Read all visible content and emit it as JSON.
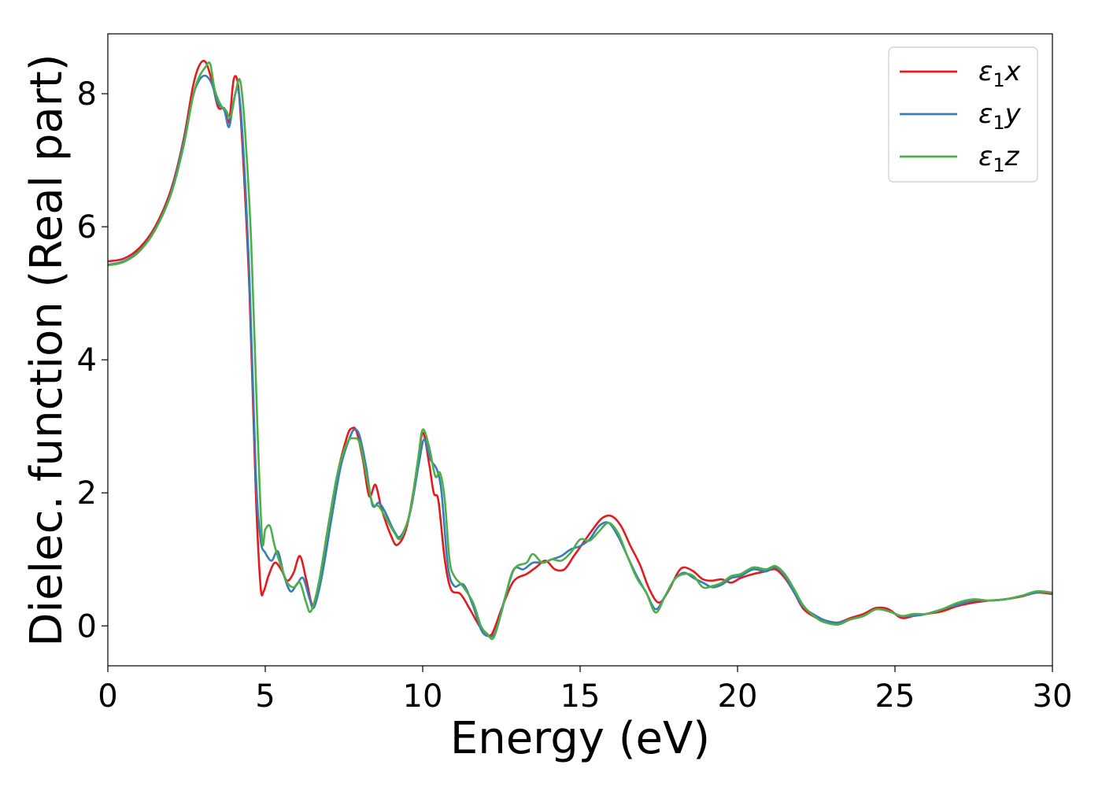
{
  "chart_data": {
    "type": "line",
    "title": "",
    "xlabel": "Energy (eV)",
    "ylabel": "Dielec. function (Real part)",
    "xlim": [
      0,
      30
    ],
    "ylim": [
      -0.6,
      8.9
    ],
    "xticks": [
      0,
      5,
      10,
      15,
      20,
      25,
      30
    ],
    "xtick_labels": [
      "0",
      "5",
      "10",
      "15",
      "20",
      "25",
      "30"
    ],
    "yticks": [
      0,
      2,
      4,
      6,
      8
    ],
    "ytick_labels": [
      "0",
      "2",
      "4",
      "6",
      "8"
    ],
    "grid": false,
    "legend_position": "top-right",
    "series": [
      {
        "name": "ε1x",
        "legend": {
          "base": "ε",
          "sub": "1",
          "suffix": "x"
        },
        "color": "#e41a1c",
        "points": [
          [
            0,
            5.48
          ],
          [
            0.5,
            5.52
          ],
          [
            1.0,
            5.68
          ],
          [
            1.5,
            6.0
          ],
          [
            2.0,
            6.55
          ],
          [
            2.4,
            7.3
          ],
          [
            2.7,
            8.1
          ],
          [
            2.9,
            8.42
          ],
          [
            3.1,
            8.48
          ],
          [
            3.3,
            8.2
          ],
          [
            3.5,
            7.8
          ],
          [
            3.7,
            7.78
          ],
          [
            3.85,
            7.58
          ],
          [
            4.0,
            8.22
          ],
          [
            4.15,
            8.08
          ],
          [
            4.3,
            7.0
          ],
          [
            4.5,
            5.0
          ],
          [
            4.7,
            2.0
          ],
          [
            4.85,
            0.6
          ],
          [
            4.95,
            0.52
          ],
          [
            5.1,
            0.75
          ],
          [
            5.3,
            0.95
          ],
          [
            5.5,
            0.85
          ],
          [
            5.7,
            0.68
          ],
          [
            5.9,
            0.8
          ],
          [
            6.1,
            1.05
          ],
          [
            6.3,
            0.7
          ],
          [
            6.5,
            0.32
          ],
          [
            6.7,
            0.62
          ],
          [
            7.0,
            1.5
          ],
          [
            7.3,
            2.3
          ],
          [
            7.6,
            2.85
          ],
          [
            7.75,
            2.97
          ],
          [
            7.9,
            2.92
          ],
          [
            8.1,
            2.5
          ],
          [
            8.3,
            1.95
          ],
          [
            8.5,
            2.12
          ],
          [
            8.7,
            1.75
          ],
          [
            9.0,
            1.35
          ],
          [
            9.2,
            1.22
          ],
          [
            9.5,
            1.5
          ],
          [
            9.8,
            2.3
          ],
          [
            10.0,
            2.9
          ],
          [
            10.2,
            2.45
          ],
          [
            10.35,
            2.0
          ],
          [
            10.5,
            1.88
          ],
          [
            10.7,
            1.0
          ],
          [
            10.9,
            0.55
          ],
          [
            11.2,
            0.48
          ],
          [
            11.5,
            0.25
          ],
          [
            11.8,
            0.0
          ],
          [
            12.0,
            -0.1
          ],
          [
            12.2,
            -0.12
          ],
          [
            12.5,
            0.25
          ],
          [
            12.8,
            0.6
          ],
          [
            13.0,
            0.72
          ],
          [
            13.3,
            0.78
          ],
          [
            13.6,
            0.88
          ],
          [
            13.9,
            0.98
          ],
          [
            14.2,
            0.85
          ],
          [
            14.5,
            0.85
          ],
          [
            14.8,
            1.05
          ],
          [
            15.1,
            1.25
          ],
          [
            15.4,
            1.45
          ],
          [
            15.7,
            1.62
          ],
          [
            16.0,
            1.65
          ],
          [
            16.3,
            1.5
          ],
          [
            16.6,
            1.2
          ],
          [
            16.9,
            0.92
          ],
          [
            17.2,
            0.55
          ],
          [
            17.5,
            0.35
          ],
          [
            17.8,
            0.52
          ],
          [
            18.1,
            0.8
          ],
          [
            18.3,
            0.88
          ],
          [
            18.6,
            0.82
          ],
          [
            18.9,
            0.7
          ],
          [
            19.2,
            0.68
          ],
          [
            19.5,
            0.7
          ],
          [
            19.8,
            0.65
          ],
          [
            20.1,
            0.72
          ],
          [
            20.5,
            0.78
          ],
          [
            20.9,
            0.82
          ],
          [
            21.2,
            0.85
          ],
          [
            21.5,
            0.72
          ],
          [
            21.8,
            0.5
          ],
          [
            22.1,
            0.25
          ],
          [
            22.5,
            0.12
          ],
          [
            22.8,
            0.05
          ],
          [
            23.2,
            0.05
          ],
          [
            23.6,
            0.12
          ],
          [
            24.0,
            0.18
          ],
          [
            24.4,
            0.27
          ],
          [
            24.8,
            0.25
          ],
          [
            25.2,
            0.12
          ],
          [
            25.6,
            0.15
          ],
          [
            26.0,
            0.18
          ],
          [
            26.5,
            0.22
          ],
          [
            27.0,
            0.3
          ],
          [
            27.5,
            0.35
          ],
          [
            28.0,
            0.38
          ],
          [
            28.5,
            0.4
          ],
          [
            29.0,
            0.44
          ],
          [
            29.5,
            0.5
          ],
          [
            30.0,
            0.48
          ]
        ]
      },
      {
        "name": "ε1y",
        "legend": {
          "base": "ε",
          "sub": "1",
          "suffix": "y"
        },
        "color": "#377eb8",
        "points": [
          [
            0,
            5.43
          ],
          [
            0.5,
            5.48
          ],
          [
            1.0,
            5.64
          ],
          [
            1.5,
            5.96
          ],
          [
            2.0,
            6.5
          ],
          [
            2.4,
            7.25
          ],
          [
            2.7,
            7.95
          ],
          [
            2.9,
            8.2
          ],
          [
            3.1,
            8.27
          ],
          [
            3.3,
            8.15
          ],
          [
            3.5,
            7.85
          ],
          [
            3.7,
            7.75
          ],
          [
            3.85,
            7.5
          ],
          [
            4.0,
            7.9
          ],
          [
            4.15,
            8.05
          ],
          [
            4.3,
            7.2
          ],
          [
            4.5,
            5.2
          ],
          [
            4.7,
            2.3
          ],
          [
            4.85,
            1.3
          ],
          [
            5.0,
            1.1
          ],
          [
            5.2,
            0.98
          ],
          [
            5.4,
            1.12
          ],
          [
            5.6,
            0.75
          ],
          [
            5.8,
            0.52
          ],
          [
            6.0,
            0.62
          ],
          [
            6.2,
            0.72
          ],
          [
            6.4,
            0.42
          ],
          [
            6.55,
            0.28
          ],
          [
            6.8,
            0.75
          ],
          [
            7.1,
            1.6
          ],
          [
            7.4,
            2.4
          ],
          [
            7.7,
            2.85
          ],
          [
            7.85,
            2.95
          ],
          [
            8.0,
            2.85
          ],
          [
            8.2,
            2.4
          ],
          [
            8.4,
            1.82
          ],
          [
            8.6,
            1.85
          ],
          [
            8.8,
            1.72
          ],
          [
            9.1,
            1.42
          ],
          [
            9.3,
            1.35
          ],
          [
            9.6,
            1.7
          ],
          [
            9.9,
            2.5
          ],
          [
            10.05,
            2.8
          ],
          [
            10.25,
            2.5
          ],
          [
            10.45,
            2.35
          ],
          [
            10.6,
            2.0
          ],
          [
            10.8,
            0.9
          ],
          [
            11.0,
            0.6
          ],
          [
            11.3,
            0.62
          ],
          [
            11.6,
            0.3
          ],
          [
            11.85,
            -0.05
          ],
          [
            12.05,
            -0.15
          ],
          [
            12.3,
            -0.1
          ],
          [
            12.6,
            0.4
          ],
          [
            12.9,
            0.85
          ],
          [
            13.2,
            0.85
          ],
          [
            13.5,
            0.95
          ],
          [
            13.8,
            0.95
          ],
          [
            14.1,
            1.0
          ],
          [
            14.4,
            1.05
          ],
          [
            14.7,
            1.15
          ],
          [
            15.0,
            1.2
          ],
          [
            15.3,
            1.3
          ],
          [
            15.6,
            1.5
          ],
          [
            15.9,
            1.55
          ],
          [
            16.2,
            1.35
          ],
          [
            16.5,
            1.05
          ],
          [
            16.8,
            0.75
          ],
          [
            17.1,
            0.5
          ],
          [
            17.4,
            0.25
          ],
          [
            17.7,
            0.45
          ],
          [
            18.0,
            0.7
          ],
          [
            18.3,
            0.8
          ],
          [
            18.6,
            0.72
          ],
          [
            18.9,
            0.65
          ],
          [
            19.2,
            0.58
          ],
          [
            19.5,
            0.62
          ],
          [
            19.8,
            0.72
          ],
          [
            20.1,
            0.75
          ],
          [
            20.5,
            0.85
          ],
          [
            20.9,
            0.82
          ],
          [
            21.2,
            0.88
          ],
          [
            21.5,
            0.75
          ],
          [
            21.8,
            0.5
          ],
          [
            22.1,
            0.28
          ],
          [
            22.5,
            0.15
          ],
          [
            22.8,
            0.08
          ],
          [
            23.2,
            0.05
          ],
          [
            23.6,
            0.1
          ],
          [
            24.0,
            0.15
          ],
          [
            24.4,
            0.25
          ],
          [
            24.8,
            0.22
          ],
          [
            25.2,
            0.15
          ],
          [
            25.6,
            0.15
          ],
          [
            26.0,
            0.18
          ],
          [
            26.5,
            0.25
          ],
          [
            27.0,
            0.32
          ],
          [
            27.5,
            0.38
          ],
          [
            28.0,
            0.38
          ],
          [
            28.5,
            0.4
          ],
          [
            29.0,
            0.45
          ],
          [
            29.5,
            0.5
          ],
          [
            30.0,
            0.5
          ]
        ]
      },
      {
        "name": "ε1z",
        "legend": {
          "base": "ε",
          "sub": "1",
          "suffix": "z"
        },
        "color": "#4daf4a",
        "points": [
          [
            0,
            5.42
          ],
          [
            0.5,
            5.47
          ],
          [
            1.0,
            5.63
          ],
          [
            1.5,
            5.95
          ],
          [
            2.0,
            6.48
          ],
          [
            2.4,
            7.2
          ],
          [
            2.7,
            7.95
          ],
          [
            2.9,
            8.25
          ],
          [
            3.1,
            8.4
          ],
          [
            3.25,
            8.45
          ],
          [
            3.4,
            8.05
          ],
          [
            3.6,
            7.82
          ],
          [
            3.75,
            7.75
          ],
          [
            3.9,
            7.65
          ],
          [
            4.05,
            8.0
          ],
          [
            4.2,
            8.2
          ],
          [
            4.35,
            7.5
          ],
          [
            4.55,
            5.8
          ],
          [
            4.75,
            3.0
          ],
          [
            4.9,
            1.3
          ],
          [
            5.0,
            1.45
          ],
          [
            5.15,
            1.5
          ],
          [
            5.3,
            1.2
          ],
          [
            5.5,
            0.9
          ],
          [
            5.7,
            0.65
          ],
          [
            5.9,
            0.58
          ],
          [
            6.1,
            0.65
          ],
          [
            6.3,
            0.35
          ],
          [
            6.45,
            0.22
          ],
          [
            6.7,
            0.65
          ],
          [
            7.0,
            1.5
          ],
          [
            7.3,
            2.3
          ],
          [
            7.6,
            2.75
          ],
          [
            7.8,
            2.82
          ],
          [
            8.0,
            2.75
          ],
          [
            8.2,
            2.3
          ],
          [
            8.4,
            1.85
          ],
          [
            8.6,
            1.8
          ],
          [
            8.8,
            1.65
          ],
          [
            9.1,
            1.4
          ],
          [
            9.3,
            1.32
          ],
          [
            9.6,
            1.72
          ],
          [
            9.85,
            2.5
          ],
          [
            10.0,
            2.95
          ],
          [
            10.2,
            2.7
          ],
          [
            10.4,
            2.25
          ],
          [
            10.55,
            2.3
          ],
          [
            10.7,
            1.9
          ],
          [
            10.85,
            1.0
          ],
          [
            11.0,
            0.75
          ],
          [
            11.3,
            0.58
          ],
          [
            11.6,
            0.35
          ],
          [
            11.85,
            0.0
          ],
          [
            12.05,
            -0.12
          ],
          [
            12.25,
            -0.18
          ],
          [
            12.5,
            0.2
          ],
          [
            12.8,
            0.75
          ],
          [
            13.0,
            0.9
          ],
          [
            13.3,
            0.95
          ],
          [
            13.5,
            1.08
          ],
          [
            13.8,
            0.95
          ],
          [
            14.1,
            1.0
          ],
          [
            14.4,
            0.98
          ],
          [
            14.7,
            1.1
          ],
          [
            15.0,
            1.3
          ],
          [
            15.3,
            1.28
          ],
          [
            15.6,
            1.42
          ],
          [
            15.9,
            1.55
          ],
          [
            16.2,
            1.4
          ],
          [
            16.5,
            1.05
          ],
          [
            16.8,
            0.72
          ],
          [
            17.1,
            0.5
          ],
          [
            17.4,
            0.2
          ],
          [
            17.7,
            0.45
          ],
          [
            18.0,
            0.7
          ],
          [
            18.3,
            0.78
          ],
          [
            18.6,
            0.75
          ],
          [
            18.9,
            0.58
          ],
          [
            19.2,
            0.6
          ],
          [
            19.5,
            0.65
          ],
          [
            19.8,
            0.75
          ],
          [
            20.1,
            0.78
          ],
          [
            20.5,
            0.88
          ],
          [
            20.9,
            0.85
          ],
          [
            21.2,
            0.9
          ],
          [
            21.5,
            0.78
          ],
          [
            21.8,
            0.55
          ],
          [
            22.1,
            0.3
          ],
          [
            22.5,
            0.12
          ],
          [
            22.8,
            0.05
          ],
          [
            23.2,
            0.02
          ],
          [
            23.6,
            0.1
          ],
          [
            24.0,
            0.15
          ],
          [
            24.4,
            0.25
          ],
          [
            24.8,
            0.22
          ],
          [
            25.2,
            0.15
          ],
          [
            25.6,
            0.18
          ],
          [
            26.0,
            0.18
          ],
          [
            26.5,
            0.25
          ],
          [
            27.0,
            0.35
          ],
          [
            27.5,
            0.4
          ],
          [
            28.0,
            0.38
          ],
          [
            28.5,
            0.4
          ],
          [
            29.0,
            0.45
          ],
          [
            29.5,
            0.52
          ],
          [
            30.0,
            0.5
          ]
        ]
      }
    ]
  }
}
